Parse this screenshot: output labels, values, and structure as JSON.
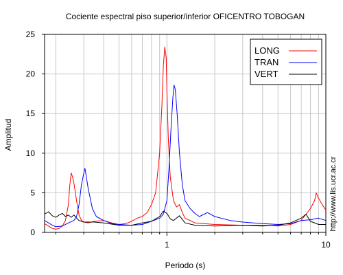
{
  "chart_data": {
    "type": "line",
    "title": "Cociente espectral piso superior/inferior OFICENTRO TOBOGAN",
    "xlabel": "Periodo (s)",
    "ylabel": "Amplitud",
    "xscale": "log",
    "xlim": [
      0.17,
      10
    ],
    "ylim": [
      0,
      25
    ],
    "x_ticks": [
      {
        "value": 1,
        "label": "1"
      },
      {
        "value": 10,
        "label": "10"
      }
    ],
    "y_ticks": [
      {
        "value": 0,
        "label": "0"
      },
      {
        "value": 5,
        "label": "5"
      },
      {
        "value": 10,
        "label": "10"
      },
      {
        "value": 15,
        "label": "15"
      },
      {
        "value": 20,
        "label": "20"
      },
      {
        "value": 25,
        "label": "25"
      }
    ],
    "grid": true,
    "legend_position": "top-right",
    "series": [
      {
        "name": "LONG",
        "color": "#ff0000",
        "points": [
          [
            0.17,
            1.1
          ],
          [
            0.18,
            0.8
          ],
          [
            0.19,
            0.5
          ],
          [
            0.2,
            0.4
          ],
          [
            0.21,
            0.5
          ],
          [
            0.22,
            0.8
          ],
          [
            0.23,
            1.5
          ],
          [
            0.24,
            3.5
          ],
          [
            0.245,
            6
          ],
          [
            0.25,
            7.5
          ],
          [
            0.255,
            7
          ],
          [
            0.26,
            6.2
          ],
          [
            0.27,
            4
          ],
          [
            0.28,
            2.2
          ],
          [
            0.29,
            1.5
          ],
          [
            0.3,
            1.3
          ],
          [
            0.32,
            1.2
          ],
          [
            0.35,
            1.4
          ],
          [
            0.4,
            1.5
          ],
          [
            0.45,
            1.2
          ],
          [
            0.5,
            1
          ],
          [
            0.55,
            1.1
          ],
          [
            0.6,
            1.4
          ],
          [
            0.65,
            1.8
          ],
          [
            0.7,
            2
          ],
          [
            0.75,
            2.5
          ],
          [
            0.8,
            3.5
          ],
          [
            0.85,
            5
          ],
          [
            0.9,
            10
          ],
          [
            0.93,
            16
          ],
          [
            0.95,
            21
          ],
          [
            0.97,
            23.4
          ],
          [
            0.99,
            22
          ],
          [
            1.0,
            18
          ],
          [
            1.02,
            12
          ],
          [
            1.05,
            7
          ],
          [
            1.1,
            4
          ],
          [
            1.15,
            3.2
          ],
          [
            1.2,
            3.5
          ],
          [
            1.25,
            2.5
          ],
          [
            1.3,
            1.8
          ],
          [
            1.5,
            1.2
          ],
          [
            2,
            1
          ],
          [
            3,
            0.9
          ],
          [
            4,
            0.9
          ],
          [
            5,
            0.8
          ],
          [
            6,
            1
          ],
          [
            7,
            1.5
          ],
          [
            7.5,
            2.3
          ],
          [
            8,
            3
          ],
          [
            8.5,
            4
          ],
          [
            8.7,
            5
          ],
          [
            9,
            4.3
          ],
          [
            9.5,
            3.5
          ],
          [
            10,
            2.8
          ]
        ]
      },
      {
        "name": "TRAN",
        "color": "#0000ff",
        "points": [
          [
            0.17,
            1.5
          ],
          [
            0.18,
            1.2
          ],
          [
            0.19,
            0.9
          ],
          [
            0.2,
            0.7
          ],
          [
            0.22,
            0.8
          ],
          [
            0.24,
            1.2
          ],
          [
            0.26,
            1.5
          ],
          [
            0.27,
            2
          ],
          [
            0.28,
            3.5
          ],
          [
            0.29,
            6
          ],
          [
            0.3,
            7.5
          ],
          [
            0.305,
            8.1
          ],
          [
            0.31,
            7.2
          ],
          [
            0.32,
            5.5
          ],
          [
            0.34,
            3
          ],
          [
            0.36,
            2
          ],
          [
            0.4,
            1.5
          ],
          [
            0.45,
            1.1
          ],
          [
            0.5,
            1
          ],
          [
            0.6,
            0.9
          ],
          [
            0.7,
            1
          ],
          [
            0.8,
            1.4
          ],
          [
            0.9,
            1.8
          ],
          [
            0.95,
            2.3
          ],
          [
            1.0,
            4
          ],
          [
            1.03,
            8
          ],
          [
            1.06,
            13
          ],
          [
            1.09,
            17
          ],
          [
            1.11,
            18.6
          ],
          [
            1.13,
            18
          ],
          [
            1.16,
            15
          ],
          [
            1.2,
            10
          ],
          [
            1.25,
            6
          ],
          [
            1.3,
            4
          ],
          [
            1.4,
            3
          ],
          [
            1.5,
            2.4
          ],
          [
            1.6,
            2
          ],
          [
            1.8,
            2.5
          ],
          [
            2,
            2
          ],
          [
            2.5,
            1.5
          ],
          [
            3,
            1.3
          ],
          [
            4,
            1.1
          ],
          [
            5,
            1
          ],
          [
            6,
            1.1
          ],
          [
            7,
            1.5
          ],
          [
            8,
            1.6
          ],
          [
            9,
            1.8
          ],
          [
            10,
            1.5
          ]
        ]
      },
      {
        "name": "VERT",
        "color": "#000000",
        "points": [
          [
            0.17,
            2.3
          ],
          [
            0.18,
            2.6
          ],
          [
            0.19,
            2.1
          ],
          [
            0.2,
            1.9
          ],
          [
            0.21,
            2.2
          ],
          [
            0.22,
            2.4
          ],
          [
            0.23,
            2
          ],
          [
            0.24,
            2.2
          ],
          [
            0.25,
            1.9
          ],
          [
            0.26,
            2.2
          ],
          [
            0.27,
            1.8
          ],
          [
            0.28,
            1.5
          ],
          [
            0.3,
            1.3
          ],
          [
            0.35,
            1.3
          ],
          [
            0.4,
            1.2
          ],
          [
            0.5,
            0.9
          ],
          [
            0.6,
            0.9
          ],
          [
            0.7,
            1.2
          ],
          [
            0.8,
            1.4
          ],
          [
            0.9,
            2
          ],
          [
            0.95,
            2.7
          ],
          [
            1.0,
            2.4
          ],
          [
            1.05,
            1.7
          ],
          [
            1.1,
            1.5
          ],
          [
            1.2,
            2.1
          ],
          [
            1.3,
            1.2
          ],
          [
            1.5,
            0.9
          ],
          [
            2,
            0.8
          ],
          [
            3,
            0.9
          ],
          [
            4,
            0.8
          ],
          [
            5,
            0.9
          ],
          [
            6,
            1.2
          ],
          [
            7,
            1.8
          ],
          [
            7.5,
            2.3
          ],
          [
            8,
            1.4
          ],
          [
            9,
            1
          ],
          [
            10,
            1
          ]
        ]
      }
    ]
  },
  "side_text": "http://www.lis.ucr.ac.cr"
}
